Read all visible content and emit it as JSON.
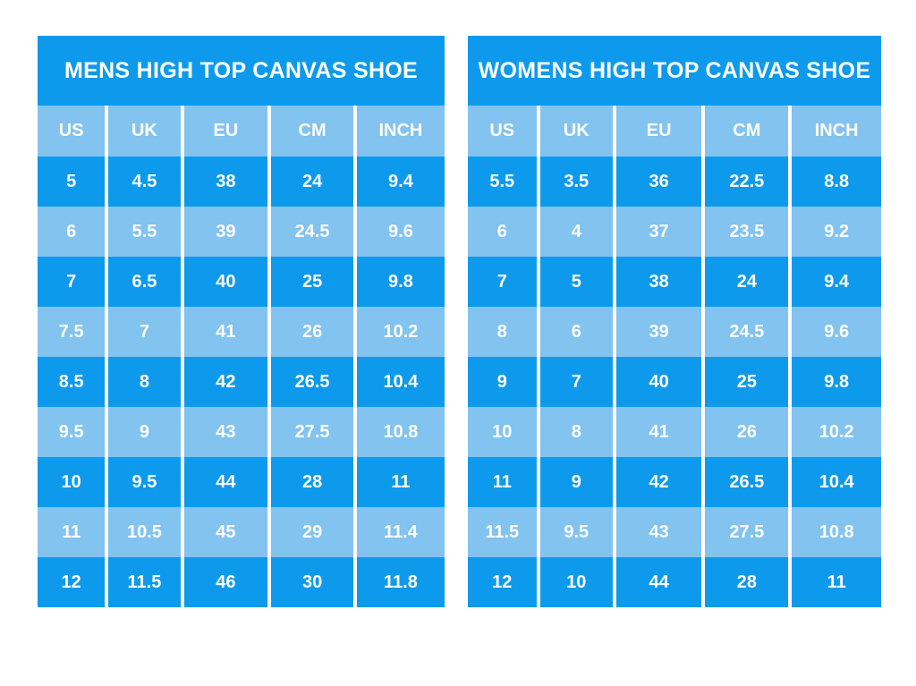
{
  "page": {
    "background": "#ffffff"
  },
  "colors": {
    "dark_blue": "#0e9aec",
    "light_blue": "#82c3ef",
    "text": "#ffffff",
    "separator": "#ffffff"
  },
  "chart_data": [
    {
      "type": "table",
      "title": "MENS HIGH TOP CANVAS SHOE",
      "columns": [
        "US",
        "UK",
        "EU",
        "CM",
        "INCH"
      ],
      "rows": [
        [
          "5",
          "4.5",
          "38",
          "24",
          "9.4"
        ],
        [
          "6",
          "5.5",
          "39",
          "24.5",
          "9.6"
        ],
        [
          "7",
          "6.5",
          "40",
          "25",
          "9.8"
        ],
        [
          "7.5",
          "7",
          "41",
          "26",
          "10.2"
        ],
        [
          "8.5",
          "8",
          "42",
          "26.5",
          "10.4"
        ],
        [
          "9.5",
          "9",
          "43",
          "27.5",
          "10.8"
        ],
        [
          "10",
          "9.5",
          "44",
          "28",
          "11"
        ],
        [
          "11",
          "10.5",
          "45",
          "29",
          "11.4"
        ],
        [
          "12",
          "11.5",
          "46",
          "30",
          "11.8"
        ]
      ],
      "layout": {
        "row_striping": "alternating dark/light starting dark",
        "header_background": "light_blue",
        "title_background": "dark_blue"
      }
    },
    {
      "type": "table",
      "title": "WOMENS HIGH TOP CANVAS SHOE",
      "columns": [
        "US",
        "UK",
        "EU",
        "CM",
        "INCH"
      ],
      "rows": [
        [
          "5.5",
          "3.5",
          "36",
          "22.5",
          "8.8"
        ],
        [
          "6",
          "4",
          "37",
          "23.5",
          "9.2"
        ],
        [
          "7",
          "5",
          "38",
          "24",
          "9.4"
        ],
        [
          "8",
          "6",
          "39",
          "24.5",
          "9.6"
        ],
        [
          "9",
          "7",
          "40",
          "25",
          "9.8"
        ],
        [
          "10",
          "8",
          "41",
          "26",
          "10.2"
        ],
        [
          "11",
          "9",
          "42",
          "26.5",
          "10.4"
        ],
        [
          "11.5",
          "9.5",
          "43",
          "27.5",
          "10.8"
        ],
        [
          "12",
          "10",
          "44",
          "28",
          "11"
        ]
      ],
      "layout": {
        "row_striping": "alternating dark/light starting dark",
        "header_background": "light_blue",
        "title_background": "dark_blue"
      }
    }
  ]
}
